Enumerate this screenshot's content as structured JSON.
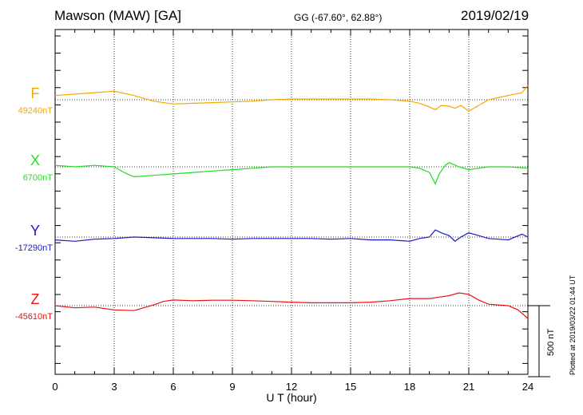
{
  "header": {
    "station": "Mawson (MAW)  [GA]",
    "coords": "GG (-67.60°,  62.88°)",
    "date": "2019/02/19"
  },
  "plotted_note": "Plotted at 2019/03/22 01:44 UT",
  "scale_label": "500 nT",
  "chart_data": {
    "type": "line",
    "xlabel": "U T (hour)",
    "xlim": [
      0,
      24
    ],
    "xticks": [
      "0",
      "3",
      "6",
      "9",
      "12",
      "15",
      "18",
      "21",
      "24"
    ],
    "grid": true,
    "scale_bar_nT": 500,
    "series": [
      {
        "name": "F",
        "baseline_label": "49240nT",
        "baseline_nT": 49240,
        "color": "#f5a800",
        "x": [
          0,
          1,
          2,
          3,
          4,
          5,
          6,
          7,
          8,
          9,
          10,
          11,
          12,
          13,
          14,
          15,
          16,
          17,
          18,
          18.5,
          19,
          19.3,
          19.6,
          20,
          20.3,
          20.6,
          21,
          21.5,
          22,
          23,
          23.7,
          24
        ],
        "y": [
          49270,
          49280,
          49290,
          49300,
          49270,
          49230,
          49210,
          49215,
          49220,
          49225,
          49230,
          49240,
          49245,
          49245,
          49245,
          49245,
          49245,
          49240,
          49230,
          49215,
          49190,
          49170,
          49200,
          49195,
          49180,
          49200,
          49160,
          49200,
          49240,
          49270,
          49290,
          49340
        ]
      },
      {
        "name": "X",
        "baseline_label": "6700nT",
        "baseline_nT": 6700,
        "color": "#22dd22",
        "x": [
          0,
          1,
          2,
          3,
          3.5,
          4,
          5,
          6,
          7,
          8,
          9,
          10,
          11,
          12,
          13,
          14,
          15,
          16,
          17,
          18,
          18.5,
          19,
          19.3,
          19.5,
          19.8,
          20,
          20.5,
          21,
          21.5,
          22,
          23,
          24
        ],
        "y": [
          6710,
          6700,
          6710,
          6700,
          6660,
          6630,
          6640,
          6650,
          6660,
          6670,
          6680,
          6690,
          6700,
          6700,
          6700,
          6700,
          6700,
          6700,
          6700,
          6700,
          6690,
          6660,
          6580,
          6650,
          6710,
          6730,
          6700,
          6680,
          6690,
          6700,
          6700,
          6690
        ]
      },
      {
        "name": "Y",
        "baseline_label": "-17290nT",
        "baseline_nT": -17290,
        "color": "#1a1acc",
        "x": [
          0,
          1,
          2,
          3,
          4,
          5,
          6,
          7,
          8,
          9,
          10,
          11,
          12,
          13,
          14,
          15,
          16,
          17,
          18,
          18.5,
          19,
          19.3,
          19.6,
          20,
          20.3,
          20.6,
          21,
          21.5,
          22,
          23,
          23.7,
          24
        ],
        "y": [
          -17310,
          -17320,
          -17305,
          -17300,
          -17290,
          -17295,
          -17300,
          -17300,
          -17300,
          -17305,
          -17300,
          -17300,
          -17300,
          -17300,
          -17305,
          -17300,
          -17310,
          -17310,
          -17320,
          -17300,
          -17290,
          -17240,
          -17260,
          -17280,
          -17320,
          -17290,
          -17260,
          -17280,
          -17300,
          -17310,
          -17270,
          -17290
        ]
      },
      {
        "name": "Z",
        "baseline_label": "-45610nT",
        "baseline_nT": -45610,
        "color": "#ee1111",
        "x": [
          0,
          1,
          2,
          3,
          4,
          5,
          5.5,
          6,
          7,
          8,
          9,
          10,
          11,
          12,
          13,
          14,
          15,
          16,
          17,
          18,
          19,
          19.5,
          20,
          20.5,
          21,
          21.5,
          22,
          23,
          23.5,
          24
        ],
        "y": [
          -45610,
          -45625,
          -45620,
          -45640,
          -45645,
          -45605,
          -45580,
          -45570,
          -45575,
          -45572,
          -45572,
          -45575,
          -45580,
          -45585,
          -45590,
          -45590,
          -45590,
          -45585,
          -45575,
          -45560,
          -45560,
          -45550,
          -45540,
          -45520,
          -45530,
          -45570,
          -45600,
          -45610,
          -45640,
          -45700
        ]
      }
    ]
  }
}
